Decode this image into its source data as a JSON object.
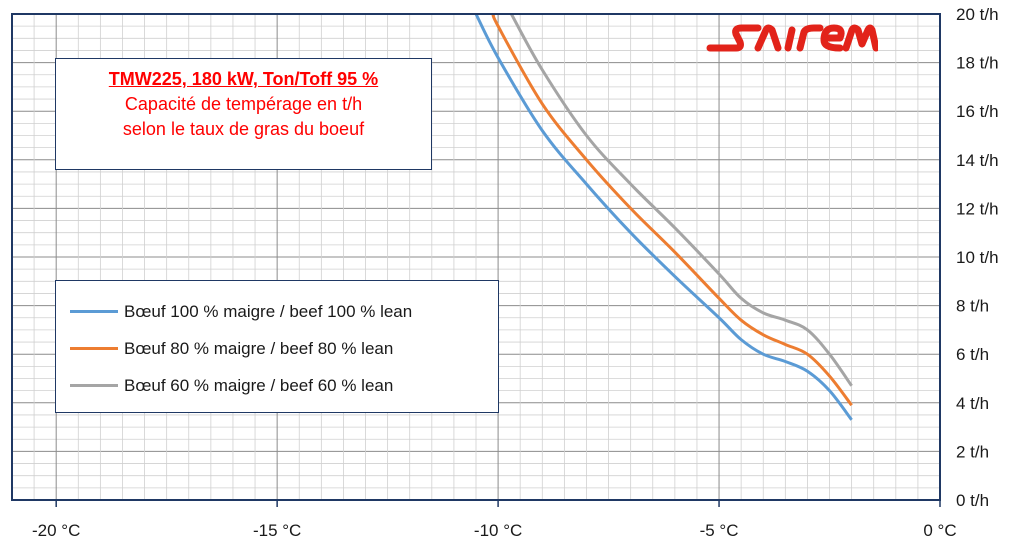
{
  "chart_data": {
    "type": "line",
    "title": "TMW225, 180 kW,  Ton/Toff 95 %",
    "subtitle_lines": [
      "Capacité de tempérage en t/h",
      "selon le taux de gras du boeuf"
    ],
    "xlim": [
      -21,
      0
    ],
    "ylim": [
      0,
      20
    ],
    "x_ticks": [
      -20,
      -15,
      -10,
      -5,
      0
    ],
    "x_tick_labels": [
      "-20 °C",
      "-15 °C",
      "-10 °C",
      "-5 °C",
      "0 °C"
    ],
    "y_ticks": [
      0,
      2,
      4,
      6,
      8,
      10,
      12,
      14,
      16,
      18,
      20
    ],
    "y_tick_labels": [
      "0 t/h",
      "2 t/h",
      "4 t/h",
      "6 t/h",
      "8 t/h",
      "10 t/h",
      "12 t/h",
      "14 t/h",
      "16 t/h",
      "18 t/h",
      "20 t/h"
    ],
    "grid": true,
    "legend_position": "bottom-left",
    "series": [
      {
        "name": "Bœuf 100 % maigre / beef 100 % lean",
        "color": "#5b9bd5",
        "x": [
          -10.5,
          -10,
          -9,
          -8,
          -7,
          -6,
          -5,
          -4.5,
          -4,
          -3.5,
          -3,
          -2.5,
          -2
        ],
        "y": [
          20,
          18.2,
          15.2,
          13,
          11,
          9.2,
          7.5,
          6.6,
          6,
          5.7,
          5.3,
          4.5,
          3.3
        ]
      },
      {
        "name": "Bœuf 80 % maigre /  beef 80 % lean",
        "color": "#ed7d31",
        "x": [
          -10.1,
          -10,
          -9,
          -8,
          -7,
          -6,
          -5,
          -4.5,
          -4,
          -3.5,
          -3,
          -2.5,
          -2
        ],
        "y": [
          20,
          19.5,
          16.3,
          14,
          12,
          10.2,
          8.3,
          7.4,
          6.8,
          6.4,
          6,
          5.1,
          3.9
        ]
      },
      {
        "name": "Bœuf 60 % maigre / beef 60 % lean",
        "color": "#a5a5a5",
        "x": [
          -9.7,
          -9,
          -8,
          -7,
          -6,
          -5,
          -4.5,
          -4,
          -3.5,
          -3,
          -2.5,
          -2
        ],
        "y": [
          20,
          17.7,
          15,
          13,
          11.2,
          9.3,
          8.3,
          7.7,
          7.4,
          7,
          6,
          4.7
        ]
      }
    ]
  },
  "logo": {
    "text": "sairem",
    "color": "#e2231a"
  }
}
